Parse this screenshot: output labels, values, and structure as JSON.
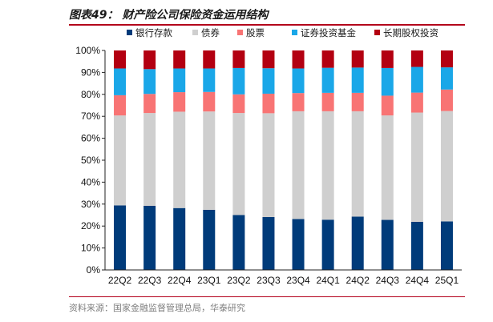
{
  "figure": {
    "title": "图表49：  财产险公司保险资金运用结构",
    "source": "资料来源：国家金融监督管理总局，华泰研究"
  },
  "chart_data": {
    "type": "bar",
    "stacked": true,
    "percent": true,
    "title": "",
    "xlabel": "",
    "ylabel": "",
    "categories": [
      "22Q2",
      "22Q3",
      "22Q4",
      "23Q1",
      "23Q2",
      "23Q3",
      "23Q4",
      "24Q1",
      "24Q2",
      "24Q3",
      "24Q4",
      "25Q1"
    ],
    "y_ticks": [
      "0%",
      "10%",
      "20%",
      "30%",
      "40%",
      "50%",
      "60%",
      "70%",
      "80%",
      "90%",
      "100%"
    ],
    "ylim": [
      0,
      100
    ],
    "grid": false,
    "legend_position": "top",
    "series": [
      {
        "name": "银行存款",
        "color": "#003b7a",
        "values": [
          29.4,
          29.2,
          28.2,
          27.4,
          25.0,
          24.1,
          23.2,
          22.9,
          24.3,
          22.8,
          21.9,
          22.1
        ]
      },
      {
        "name": "债券",
        "color": "#cfcfcf",
        "values": [
          41.0,
          42.3,
          43.9,
          44.8,
          46.5,
          47.3,
          49.1,
          49.4,
          48.0,
          47.6,
          49.8,
          50.3
        ]
      },
      {
        "name": "股票",
        "color": "#f87474",
        "values": [
          9.2,
          8.7,
          8.9,
          8.9,
          8.5,
          8.9,
          8.3,
          8.4,
          8.4,
          9.0,
          9.1,
          9.8
        ]
      },
      {
        "name": "证券投资基金",
        "color": "#1aa7e8",
        "values": [
          12.2,
          11.3,
          10.8,
          10.7,
          12.0,
          11.6,
          11.2,
          11.4,
          11.5,
          12.6,
          11.7,
          10.1
        ]
      },
      {
        "name": "长期股权投资",
        "color": "#b30011",
        "values": [
          8.2,
          8.5,
          8.2,
          8.2,
          8.0,
          8.1,
          8.2,
          7.9,
          7.8,
          8.0,
          7.5,
          7.7
        ]
      }
    ]
  }
}
